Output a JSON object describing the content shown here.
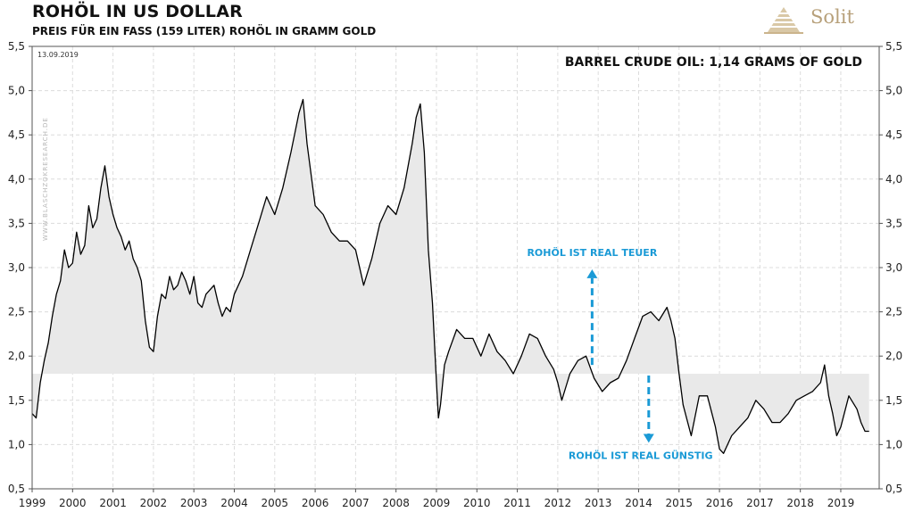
{
  "header": {
    "title": "ROHÖL IN US DOLLAR",
    "subtitle": "PREIS FÜR EIN FASS (159 LITER) ROHÖL IN GRAMM GOLD",
    "logo_text": "Solit"
  },
  "chart_data": {
    "type": "line",
    "title": "ROHÖL IN US DOLLAR",
    "subtitle": "PREIS FÜR EIN FASS (159 LITER) ROHÖL IN GRAMM GOLD",
    "date_label": "13.09.2019",
    "headline": "BARREL CRUDE OIL:  1,14 GRAMS OF  GOLD",
    "watermark": "WWW.BLASCHZOKRESEARCH.DE",
    "ylim": [
      0.5,
      5.5
    ],
    "y_ticks": [
      "0,5",
      "1,0",
      "1,5",
      "2,0",
      "2,5",
      "3,0",
      "3,5",
      "4,0",
      "4,5",
      "5,0",
      "5,5"
    ],
    "xlim": [
      1999.0,
      2019.95
    ],
    "x_ticks": [
      "1999",
      "2000",
      "2001",
      "2002",
      "2003",
      "2004",
      "2005",
      "2006",
      "2007",
      "2008",
      "2009",
      "2010",
      "2011",
      "2012",
      "2013",
      "2014",
      "2015",
      "2016",
      "2017",
      "2018",
      "2019"
    ],
    "reference_level": 1.8,
    "annotations": {
      "expensive": "ROHÖL IST  REAL  TEUER",
      "cheap": "ROHÖL  IST  REAL  GÜNSTIG",
      "arrow_color": "#1a9ad6"
    },
    "series": [
      {
        "name": "Crude oil in grams of gold",
        "x": [
          1999.0,
          1999.1,
          1999.2,
          1999.3,
          1999.4,
          1999.5,
          1999.6,
          1999.7,
          1999.8,
          1999.9,
          2000.0,
          2000.1,
          2000.2,
          2000.3,
          2000.4,
          2000.5,
          2000.6,
          2000.7,
          2000.8,
          2000.9,
          2001.0,
          2001.1,
          2001.2,
          2001.3,
          2001.4,
          2001.5,
          2001.6,
          2001.7,
          2001.8,
          2001.9,
          2002.0,
          2002.1,
          2002.2,
          2002.3,
          2002.4,
          2002.5,
          2002.6,
          2002.7,
          2002.8,
          2002.9,
          2003.0,
          2003.1,
          2003.2,
          2003.3,
          2003.4,
          2003.5,
          2003.6,
          2003.7,
          2003.8,
          2003.9,
          2004.0,
          2004.2,
          2004.4,
          2004.6,
          2004.8,
          2005.0,
          2005.2,
          2005.4,
          2005.6,
          2005.7,
          2005.8,
          2006.0,
          2006.2,
          2006.4,
          2006.6,
          2006.8,
          2007.0,
          2007.2,
          2007.4,
          2007.6,
          2007.8,
          2008.0,
          2008.2,
          2008.4,
          2008.5,
          2008.6,
          2008.7,
          2008.8,
          2008.9,
          2009.0,
          2009.05,
          2009.1,
          2009.2,
          2009.3,
          2009.5,
          2009.7,
          2009.9,
          2010.1,
          2010.3,
          2010.5,
          2010.7,
          2010.9,
          2011.1,
          2011.3,
          2011.5,
          2011.7,
          2011.9,
          2012.0,
          2012.1,
          2012.3,
          2012.5,
          2012.7,
          2012.9,
          2013.1,
          2013.3,
          2013.5,
          2013.7,
          2013.9,
          2014.1,
          2014.3,
          2014.5,
          2014.7,
          2014.8,
          2014.9,
          2015.0,
          2015.1,
          2015.3,
          2015.5,
          2015.7,
          2015.9,
          2016.0,
          2016.1,
          2016.3,
          2016.5,
          2016.7,
          2016.9,
          2017.1,
          2017.3,
          2017.5,
          2017.7,
          2017.9,
          2018.1,
          2018.3,
          2018.5,
          2018.6,
          2018.7,
          2018.8,
          2018.9,
          2019.0,
          2019.2,
          2019.4,
          2019.5,
          2019.6,
          2019.7
        ],
        "values": [
          1.35,
          1.3,
          1.7,
          1.95,
          2.15,
          2.45,
          2.7,
          2.85,
          3.2,
          3.0,
          3.05,
          3.4,
          3.15,
          3.25,
          3.7,
          3.45,
          3.55,
          3.9,
          4.15,
          3.8,
          3.6,
          3.45,
          3.35,
          3.2,
          3.3,
          3.1,
          3.0,
          2.85,
          2.4,
          2.1,
          2.05,
          2.45,
          2.7,
          2.65,
          2.9,
          2.75,
          2.8,
          2.95,
          2.85,
          2.7,
          2.9,
          2.6,
          2.55,
          2.7,
          2.75,
          2.8,
          2.6,
          2.45,
          2.55,
          2.5,
          2.7,
          2.9,
          3.2,
          3.5,
          3.8,
          3.6,
          3.9,
          4.3,
          4.75,
          4.9,
          4.4,
          3.7,
          3.6,
          3.4,
          3.3,
          3.3,
          3.2,
          2.8,
          3.1,
          3.5,
          3.7,
          3.6,
          3.9,
          4.4,
          4.7,
          4.85,
          4.3,
          3.2,
          2.6,
          1.7,
          1.3,
          1.45,
          1.9,
          2.05,
          2.3,
          2.2,
          2.2,
          2.0,
          2.25,
          2.05,
          1.95,
          1.8,
          2.0,
          2.25,
          2.2,
          2.0,
          1.85,
          1.7,
          1.5,
          1.8,
          1.95,
          2.0,
          1.75,
          1.6,
          1.7,
          1.75,
          1.95,
          2.2,
          2.45,
          2.5,
          2.4,
          2.55,
          2.4,
          2.2,
          1.8,
          1.45,
          1.1,
          1.55,
          1.55,
          1.2,
          0.95,
          0.9,
          1.1,
          1.2,
          1.3,
          1.5,
          1.4,
          1.25,
          1.25,
          1.35,
          1.5,
          1.55,
          1.6,
          1.7,
          1.9,
          1.55,
          1.35,
          1.1,
          1.2,
          1.55,
          1.4,
          1.25,
          1.15,
          1.15
        ]
      }
    ]
  }
}
